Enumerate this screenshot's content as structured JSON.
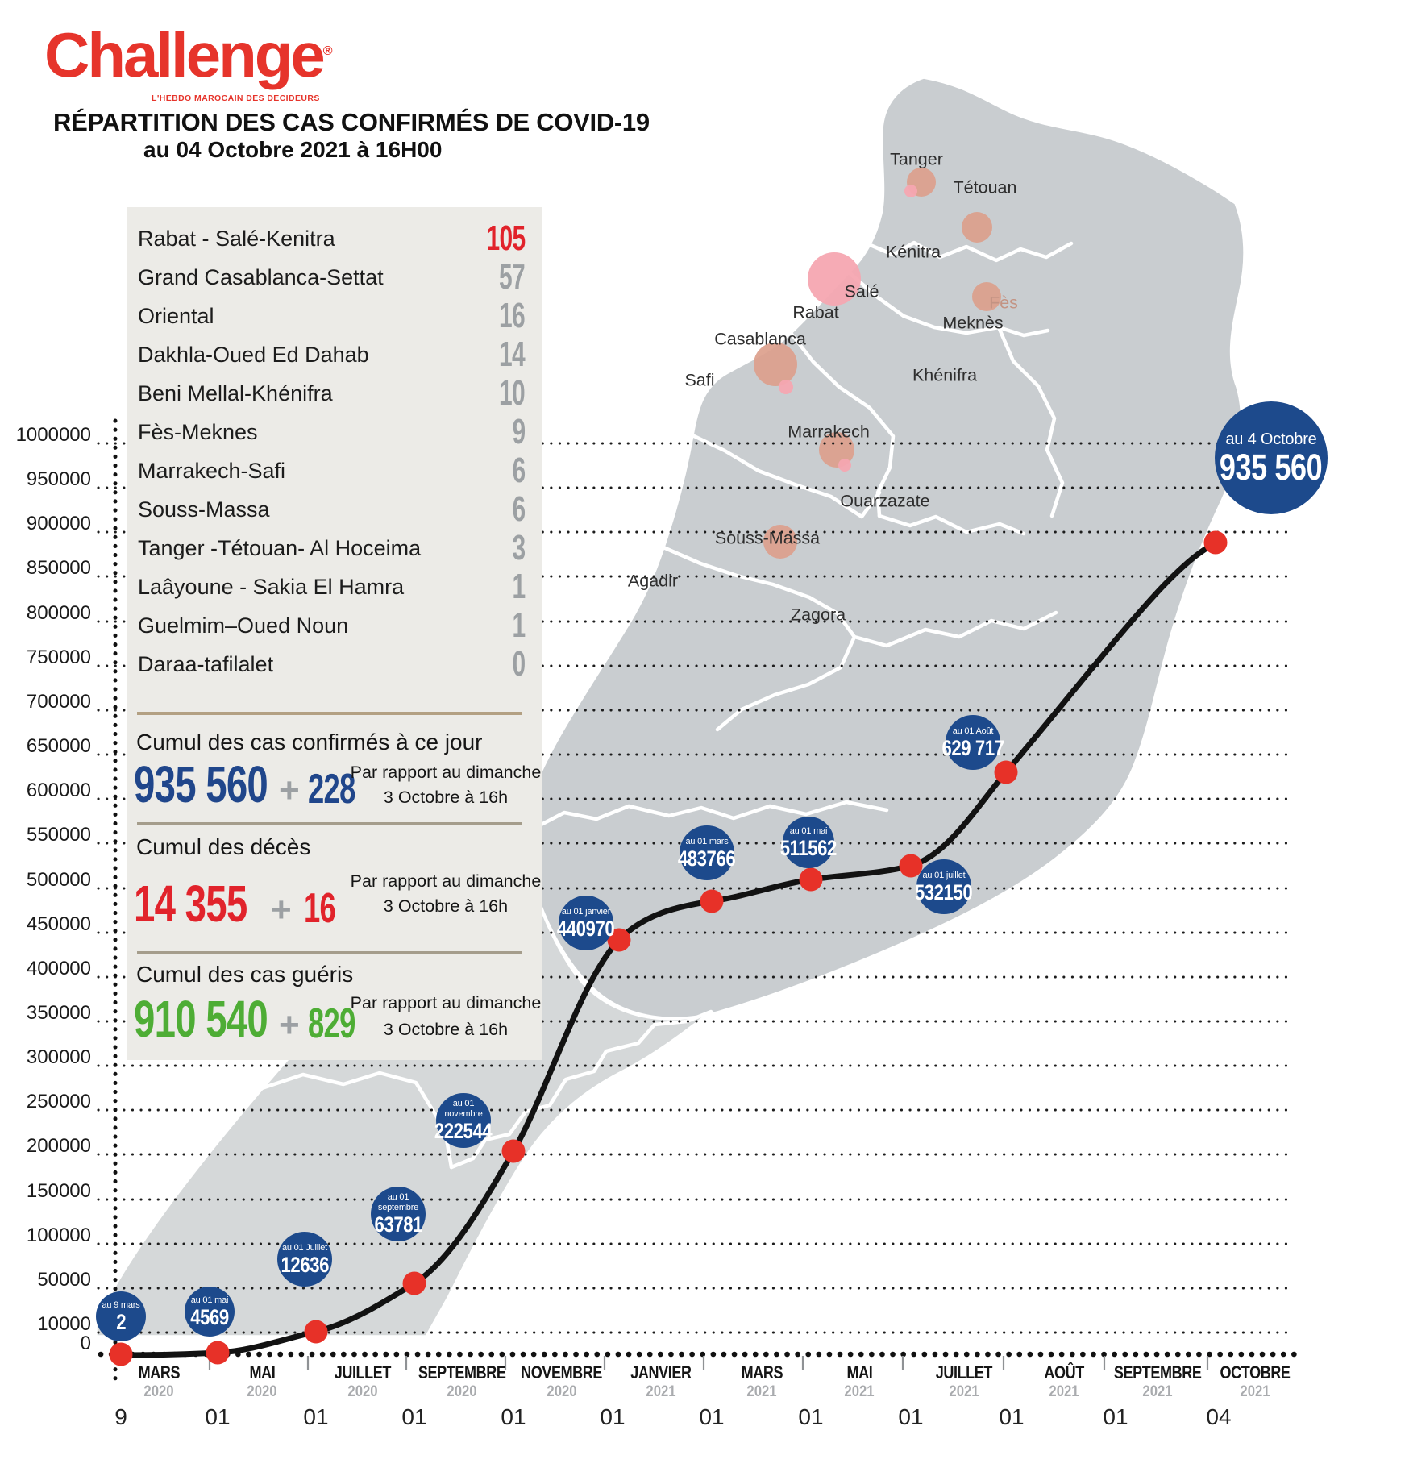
{
  "brand": {
    "name": "Challenge",
    "registered": "®",
    "tagline": "L'HEBDO MAROCAIN DES DÉCIDEURS"
  },
  "header": {
    "title": "RÉPARTITION DES CAS CONFIRMÉS DE COVID-19",
    "subtitle": "au 04 Octobre 2021 à 16H00"
  },
  "regions": {
    "rows": [
      {
        "name": "Rabat - Salé-Kenitra",
        "value": "105",
        "highlight": true
      },
      {
        "name": "Grand Casablanca-Settat",
        "value": "57",
        "highlight": false
      },
      {
        "name": "Oriental",
        "value": "16",
        "highlight": false
      },
      {
        "name": "Dakhla-Oued Ed Dahab",
        "value": "14",
        "highlight": false
      },
      {
        "name": "Beni Mellal-Khénifra",
        "value": "10",
        "highlight": false
      },
      {
        "name": "Fès-Meknes",
        "value": "9",
        "highlight": false
      },
      {
        "name": "Marrakech-Safi",
        "value": "6",
        "highlight": false
      },
      {
        "name": "Souss-Massa",
        "value": "6",
        "highlight": false
      },
      {
        "name": "Tanger -Tétouan- Al Hoceima",
        "value": "3",
        "highlight": false
      },
      {
        "name": "Laâyoune - Sakia El Hamra",
        "value": "1",
        "highlight": false
      },
      {
        "name": "Guelmim–Oued Noun",
        "value": "1",
        "highlight": false
      },
      {
        "name": "Daraa-tafilalet",
        "value": "0",
        "highlight": false
      }
    ]
  },
  "stats": [
    {
      "label": "Cumul des cas confirmés à ce jour",
      "value": "935 560",
      "plus": "+",
      "delta": "228",
      "note1": "Par rapport au dimanche",
      "note2": "3 Octobre à 16h",
      "color": "#20468b"
    },
    {
      "label": "Cumul des décès",
      "value": "14 355",
      "plus": "+",
      "delta": "16",
      "note1": "Par rapport au dimanche",
      "note2": "3 Octobre à 16h",
      "color": "#e1232b"
    },
    {
      "label": "Cumul des cas guéris",
      "value": "910 540",
      "plus": "+",
      "delta": "829",
      "note1": "Par rapport au dimanche",
      "note2": "3 Octobre à 16h",
      "color": "#4ead35"
    }
  ],
  "map": {
    "cities": [
      {
        "name": "Tanger",
        "accent": false
      },
      {
        "name": "Tétouan",
        "accent": false
      },
      {
        "name": "Kénitra",
        "accent": false
      },
      {
        "name": "Salé",
        "accent": false
      },
      {
        "name": "Rabat",
        "accent": false
      },
      {
        "name": "Fès",
        "accent": true
      },
      {
        "name": "Meknès",
        "accent": false
      },
      {
        "name": "Casablanca",
        "accent": false
      },
      {
        "name": "Khénifra",
        "accent": false
      },
      {
        "name": "Safi",
        "accent": false
      },
      {
        "name": "Marrakech",
        "accent": false
      },
      {
        "name": "Ouarzazate",
        "accent": false
      },
      {
        "name": "Souss-Massa",
        "accent": false
      },
      {
        "name": "Agadir",
        "accent": false
      },
      {
        "name": "Zagora",
        "accent": false
      }
    ]
  },
  "chart_data": {
    "type": "line",
    "title": "Cumul des cas confirmés de Covid-19 au Maroc",
    "x_axis": {
      "months": [
        {
          "label": "MARS",
          "year": "2020"
        },
        {
          "label": "MAI",
          "year": "2020"
        },
        {
          "label": "JUILLET",
          "year": "2020"
        },
        {
          "label": "SEPTEMBRE",
          "year": "2020"
        },
        {
          "label": "NOVEMBRE",
          "year": "2020"
        },
        {
          "label": "JANVIER",
          "year": "2021"
        },
        {
          "label": "MARS",
          "year": "2021"
        },
        {
          "label": "MAI",
          "year": "2021"
        },
        {
          "label": "JUILLET",
          "year": "2021"
        },
        {
          "label": "AOÛT",
          "year": "2021"
        },
        {
          "label": "SEPTEMBRE",
          "year": "2021"
        },
        {
          "label": "OCTOBRE",
          "year": "2021"
        }
      ],
      "tick_labels": [
        "9",
        "01",
        "01",
        "01",
        "01",
        "01",
        "01",
        "01",
        "01",
        "01",
        "01",
        "04"
      ]
    },
    "y_axis": {
      "ticks": [
        1000000,
        950000,
        900000,
        850000,
        800000,
        750000,
        700000,
        650000,
        600000,
        550000,
        500000,
        450000,
        400000,
        350000,
        300000,
        250000,
        200000,
        150000,
        100000,
        50000,
        10000,
        0
      ],
      "ylim": [
        0,
        1000000
      ],
      "gridlines": "dotted"
    },
    "points": [
      {
        "label": "au 9 mars",
        "value": 2,
        "display": "2"
      },
      {
        "label": "au 01 mai",
        "value": 4569,
        "display": "4569"
      },
      {
        "label": "au 01 Juillet",
        "value": 12636,
        "display": "12636"
      },
      {
        "label": "au 01 septembre",
        "value": 63781,
        "display": "63781"
      },
      {
        "label": "au 01 novembre",
        "value": 222544,
        "display": "222544"
      },
      {
        "label": "au 01 janvier",
        "value": 440970,
        "display": "440970"
      },
      {
        "label": "au 01 mars",
        "value": 483766,
        "display": "483766"
      },
      {
        "label": "au 01 mai",
        "value": 511562,
        "display": "511562"
      },
      {
        "label": "au 01 juillet",
        "value": 532150,
        "display": "532150"
      },
      {
        "label": "au 01 Août",
        "value": 629717,
        "display": "629 717"
      },
      {
        "label": "au 4 Octobre",
        "value": 935560,
        "display": "935 560"
      }
    ]
  },
  "colors": {
    "brand_red": "#e6342b",
    "accent_red": "#e1232b",
    "navy": "#1d4a8c",
    "green": "#4ead35",
    "number_gray": "#9ca0a3",
    "panel_bg": "#ecebe7",
    "map_gray": "#c9cdd0",
    "map_gray_light": "#d5d8d9",
    "pink": "#dca08c",
    "pink_bright": "#f5a6b1",
    "dot_red": "#e73128"
  }
}
